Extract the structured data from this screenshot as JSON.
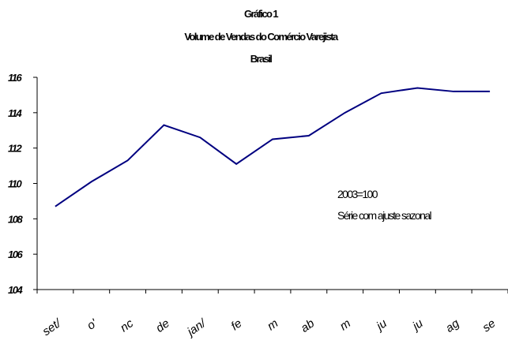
{
  "chart_data": {
    "type": "line",
    "title": "Gráfico 1",
    "subtitle": [
      "Volume de Vendas do Comércio Varejista",
      "Brasil"
    ],
    "annotations": [
      "2003=100",
      "Série com ajuste sazonal"
    ],
    "categories": [
      "set/",
      "o'",
      "nc",
      "de",
      "jan/",
      "fe",
      "m",
      "ab",
      "m",
      "ju",
      "ju",
      "ag",
      "se"
    ],
    "series": [
      {
        "name": "Volume de Vendas",
        "color": "#000080",
        "values": [
          108.7,
          110.1,
          111.3,
          113.3,
          112.6,
          111.1,
          112.5,
          112.7,
          114.0,
          115.1,
          115.4,
          115.2,
          115.2
        ]
      }
    ],
    "ylim": [
      104,
      116
    ],
    "yticks": [
      104,
      106,
      108,
      110,
      112,
      114,
      116
    ]
  }
}
